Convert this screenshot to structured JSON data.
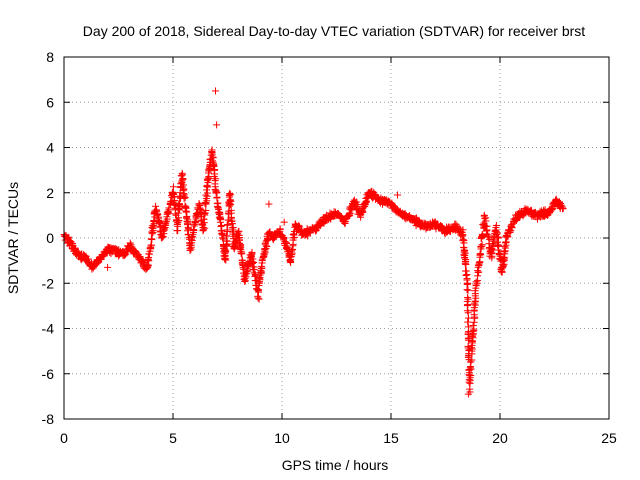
{
  "chart_data": {
    "type": "scatter",
    "title": "Day 200 of 2018, Sidereal Day-to-day VTEC variation (SDTVAR) for receiver brst",
    "xlabel": "GPS time / hours",
    "ylabel": "SDTVAR / TECUs",
    "xlim": [
      0,
      25
    ],
    "ylim": [
      -8,
      8
    ],
    "xticks": [
      "0",
      "5",
      "10",
      "15",
      "20",
      "25"
    ],
    "yticks": [
      "-8",
      "-6",
      "-4",
      "-2",
      "0",
      "2",
      "4",
      "6",
      "8"
    ],
    "grid": true,
    "marker": "+",
    "color": "#ff0000",
    "anchor_points": [
      {
        "x": 0.0,
        "y": 0.1
      },
      {
        "x": 0.3,
        "y": -0.2
      },
      {
        "x": 0.6,
        "y": -0.7
      },
      {
        "x": 1.0,
        "y": -0.9
      },
      {
        "x": 1.3,
        "y": -1.3
      },
      {
        "x": 1.6,
        "y": -1.0
      },
      {
        "x": 2.0,
        "y": -0.5
      },
      {
        "x": 2.4,
        "y": -0.6
      },
      {
        "x": 2.8,
        "y": -0.7
      },
      {
        "x": 3.0,
        "y": -0.3
      },
      {
        "x": 3.2,
        "y": -0.6
      },
      {
        "x": 3.5,
        "y": -0.9
      },
      {
        "x": 3.8,
        "y": -1.4
      },
      {
        "x": 4.0,
        "y": -0.2
      },
      {
        "x": 4.2,
        "y": 1.4
      },
      {
        "x": 4.5,
        "y": 0.0
      },
      {
        "x": 4.8,
        "y": 1.2
      },
      {
        "x": 5.0,
        "y": 2.1
      },
      {
        "x": 5.2,
        "y": 0.4
      },
      {
        "x": 5.4,
        "y": 2.8
      },
      {
        "x": 5.6,
        "y": 1.2
      },
      {
        "x": 5.8,
        "y": -0.5
      },
      {
        "x": 6.0,
        "y": 0.7
      },
      {
        "x": 6.2,
        "y": 1.5
      },
      {
        "x": 6.4,
        "y": 0.3
      },
      {
        "x": 6.6,
        "y": 2.6
      },
      {
        "x": 6.8,
        "y": 3.9
      },
      {
        "x": 7.0,
        "y": 1.8
      },
      {
        "x": 7.2,
        "y": 0.6
      },
      {
        "x": 7.4,
        "y": -1.0
      },
      {
        "x": 7.6,
        "y": 2.0
      },
      {
        "x": 7.8,
        "y": -0.4
      },
      {
        "x": 8.0,
        "y": 0.2
      },
      {
        "x": 8.3,
        "y": -1.8
      },
      {
        "x": 8.6,
        "y": -0.7
      },
      {
        "x": 8.9,
        "y": -2.5
      },
      {
        "x": 9.1,
        "y": -1.0
      },
      {
        "x": 9.4,
        "y": 0.2
      },
      {
        "x": 9.6,
        "y": 0.0
      },
      {
        "x": 9.9,
        "y": 0.3
      },
      {
        "x": 10.2,
        "y": -0.3
      },
      {
        "x": 10.4,
        "y": -1.0
      },
      {
        "x": 10.6,
        "y": 0.6
      },
      {
        "x": 11.0,
        "y": 0.2
      },
      {
        "x": 11.5,
        "y": 0.4
      },
      {
        "x": 11.9,
        "y": 0.8
      },
      {
        "x": 12.5,
        "y": 1.1
      },
      {
        "x": 12.9,
        "y": 0.7
      },
      {
        "x": 13.3,
        "y": 1.6
      },
      {
        "x": 13.6,
        "y": 1.0
      },
      {
        "x": 14.0,
        "y": 2.0
      },
      {
        "x": 14.5,
        "y": 1.7
      },
      {
        "x": 15.0,
        "y": 1.5
      },
      {
        "x": 15.4,
        "y": 1.1
      },
      {
        "x": 15.8,
        "y": 0.9
      },
      {
        "x": 16.2,
        "y": 0.7
      },
      {
        "x": 16.6,
        "y": 0.5
      },
      {
        "x": 17.0,
        "y": 0.6
      },
      {
        "x": 17.5,
        "y": 0.3
      },
      {
        "x": 18.0,
        "y": 0.5
      },
      {
        "x": 18.3,
        "y": 0.1
      },
      {
        "x": 18.5,
        "y": -2.0
      },
      {
        "x": 18.6,
        "y": -6.7
      },
      {
        "x": 18.7,
        "y": -5.0
      },
      {
        "x": 18.8,
        "y": -3.8
      },
      {
        "x": 18.9,
        "y": -2.2
      },
      {
        "x": 19.3,
        "y": 0.9
      },
      {
        "x": 19.6,
        "y": -0.8
      },
      {
        "x": 19.8,
        "y": 0.5
      },
      {
        "x": 20.1,
        "y": -1.5
      },
      {
        "x": 20.3,
        "y": 0.0
      },
      {
        "x": 20.7,
        "y": 0.9
      },
      {
        "x": 21.2,
        "y": 1.2
      },
      {
        "x": 21.7,
        "y": 1.0
      },
      {
        "x": 22.2,
        "y": 1.1
      },
      {
        "x": 22.6,
        "y": 1.6
      },
      {
        "x": 22.9,
        "y": 1.3
      }
    ],
    "outliers": [
      {
        "x": 6.95,
        "y": 6.5
      },
      {
        "x": 7.0,
        "y": 5.0
      },
      {
        "x": 9.4,
        "y": 1.5
      },
      {
        "x": 10.1,
        "y": 0.7
      },
      {
        "x": 15.3,
        "y": 1.9
      },
      {
        "x": 8.95,
        "y": -2.7
      },
      {
        "x": 18.55,
        "y": -6.9
      },
      {
        "x": 2.0,
        "y": -1.3
      }
    ]
  }
}
